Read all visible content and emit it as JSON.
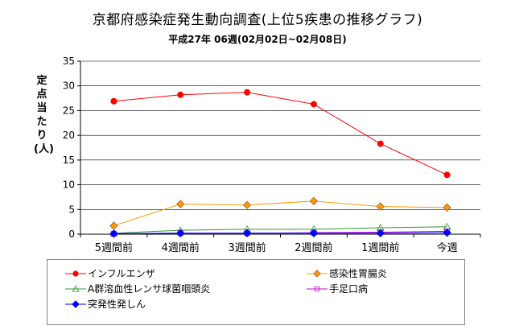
{
  "chart_data": {
    "type": "line",
    "title": "京都府感染症発生動向調査(上位5疾患の推移グラフ)",
    "subtitle": "平成27年 06週(02月02日~02月08日)",
    "ylabel": "定点当たり(人)",
    "xlabel": "",
    "categories": [
      "5週間前",
      "4週間前",
      "3週間前",
      "2週間前",
      "1週間前",
      "今週"
    ],
    "ylim": [
      0,
      35
    ],
    "yticks": [
      0,
      5,
      10,
      15,
      20,
      25,
      30,
      35
    ],
    "grid": true,
    "legend_position": "bottom",
    "series": [
      {
        "name": "インフルエンザ",
        "color": "#ff0000",
        "marker": "circle",
        "values": [
          26.9,
          28.2,
          28.7,
          26.3,
          18.3,
          12.0
        ]
      },
      {
        "name": "感染性胃腸炎",
        "color": "#ff9900",
        "marker": "diamond",
        "values": [
          1.7,
          6.1,
          5.9,
          6.7,
          5.6,
          5.4
        ]
      },
      {
        "name": "A群溶血性レンサ球菌咽頭炎",
        "color": "#339933",
        "marker": "triangle",
        "values": [
          0.2,
          0.8,
          1.0,
          1.0,
          1.3,
          1.5
        ]
      },
      {
        "name": "手足口病",
        "color": "#cc00cc",
        "marker": "square",
        "values": [
          0.1,
          0.2,
          0.2,
          0.3,
          0.4,
          0.6
        ]
      },
      {
        "name": "突発性発しん",
        "color": "#0000ff",
        "marker": "diamond",
        "values": [
          0.1,
          0.2,
          0.2,
          0.2,
          0.2,
          0.3
        ]
      }
    ]
  }
}
